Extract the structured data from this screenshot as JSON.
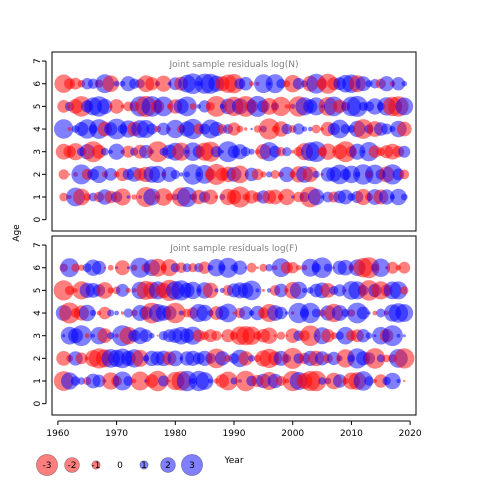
{
  "chart_data": [
    {
      "type": "scatter",
      "title": "Joint sample residuals log(N)",
      "xlabel": "",
      "ylabel": "Age",
      "xlim": [
        1959,
        2021
      ],
      "ylim": [
        -0.5,
        7.4
      ],
      "x_ticks": [
        1960,
        1970,
        1980,
        1990,
        2000,
        2010,
        2020
      ],
      "x_tick_labels": [],
      "y_ticks": [
        0,
        1,
        2,
        3,
        4,
        5,
        6,
        7
      ],
      "y_tick_labels": [
        "0",
        "1",
        "2",
        "3",
        "4",
        "5",
        "6",
        "7"
      ],
      "years": [
        1961,
        2019
      ],
      "ages": [
        1,
        2,
        3,
        4,
        5,
        6
      ],
      "seed": 11,
      "colors": {
        "positive": "#0000FF",
        "negative": "#FF0000"
      }
    },
    {
      "type": "scatter",
      "title": "Joint sample residuals log(F)",
      "xlabel": "Year",
      "ylabel": "",
      "xlim": [
        1959,
        2021
      ],
      "ylim": [
        -0.5,
        7.4
      ],
      "x_ticks": [
        1960,
        1970,
        1980,
        1990,
        2000,
        2010,
        2020
      ],
      "x_tick_labels": [
        "1960",
        "1970",
        "1980",
        "1990",
        "2000",
        "2010",
        "2020"
      ],
      "y_ticks": [
        0,
        1,
        2,
        3,
        4,
        5,
        6,
        7
      ],
      "y_tick_labels": [
        "0",
        "1",
        "2",
        "3",
        "4",
        "5",
        "6",
        "7"
      ],
      "years": [
        1961,
        2019
      ],
      "ages": [
        1,
        2,
        3,
        4,
        5,
        6
      ],
      "seed": 29,
      "colors": {
        "positive": "#0000FF",
        "negative": "#FF0000"
      }
    }
  ],
  "legend": {
    "values": [
      -3,
      -2,
      -1,
      0,
      1,
      2,
      3
    ],
    "labels": [
      "-3",
      "-2",
      "-1",
      "0",
      "1",
      "2",
      "3"
    ]
  },
  "shared": {
    "ylabel": "Age",
    "xlabel": "Year"
  }
}
